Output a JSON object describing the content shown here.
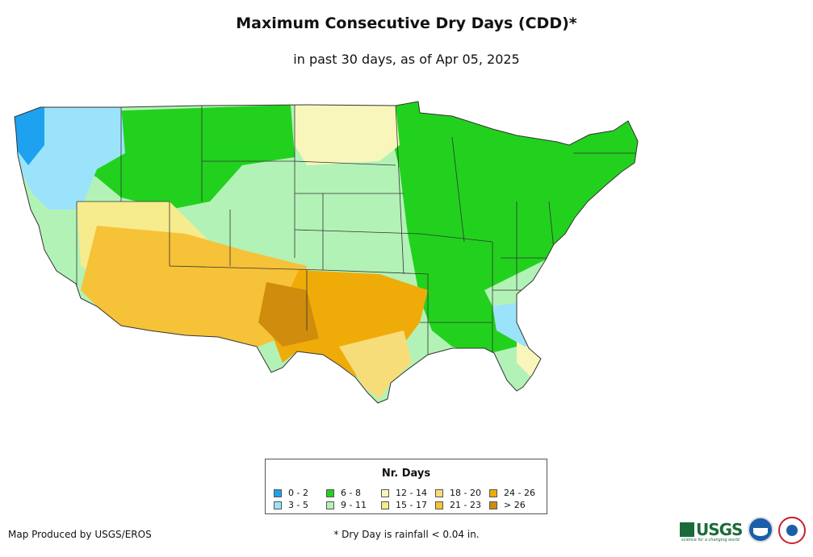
{
  "header": {
    "title": "Maximum Consecutive Dry Days (CDD)*",
    "subtitle": "in past 30 days, as of Apr 05, 2025"
  },
  "legend": {
    "title": "Nr. Days",
    "items": [
      {
        "label": "0 - 2",
        "color": "#1ea1ef"
      },
      {
        "label": "3 - 5",
        "color": "#9be3fb"
      },
      {
        "label": "6 - 8",
        "color": "#22d11e"
      },
      {
        "label": "9 - 11",
        "color": "#b3f2b6"
      },
      {
        "label": "12 - 14",
        "color": "#f8f6bb"
      },
      {
        "label": "15 - 17",
        "color": "#f6eb8d"
      },
      {
        "label": "18 - 20",
        "color": "#f7dd79"
      },
      {
        "label": "21 - 23",
        "color": "#f6c238"
      },
      {
        "label": "24 - 26",
        "color": "#efac09"
      },
      {
        "label": "> 26",
        "color": "#cf8c0d"
      }
    ]
  },
  "footer": {
    "credit": "Map Produced by USGS/EROS",
    "footnote": "* Dry Day is rainfall < 0.04 in.",
    "usgs_text": "USGS",
    "usgs_tagline": "science for a changing world"
  },
  "map": {
    "regions": [
      {
        "name": "pacific-northwest-coast",
        "class_label": "0 - 2"
      },
      {
        "name": "northwest-interior",
        "class_label": "3 - 5"
      },
      {
        "name": "northern-rockies",
        "class_label": "6 - 8"
      },
      {
        "name": "northern-plains",
        "class_label": "9 - 11"
      },
      {
        "name": "great-basin",
        "class_label": "15 - 17"
      },
      {
        "name": "southwest-desert",
        "class_label": "21 - 23"
      },
      {
        "name": "southern-plains-texas",
        "class_label": "24 - 26"
      },
      {
        "name": "eastern-us",
        "class_label": "6 - 8"
      },
      {
        "name": "southeast-coastal",
        "class_label": "12 - 14"
      }
    ]
  }
}
